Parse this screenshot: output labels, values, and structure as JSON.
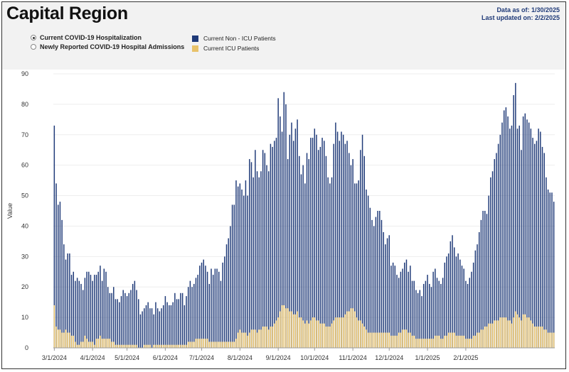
{
  "header": {
    "title": "Capital Region",
    "data_as_of": "Data as of: 1/30/2025",
    "last_updated": "Last updated on: 2/2/2025"
  },
  "controls": {
    "options": [
      {
        "label": "Current COVID-19 Hospitalization",
        "selected": true
      },
      {
        "label": "Newly Reported COVID-19 Hospital Admissions",
        "selected": false
      }
    ]
  },
  "legend": [
    {
      "label": "Current Non - ICU Patients",
      "color": "#1f3a78"
    },
    {
      "label": "Current ICU Patients",
      "color": "#e8c26a"
    }
  ],
  "chart_data": {
    "type": "bar",
    "stacked": false,
    "ylabel": "Value",
    "ylim": [
      0,
      90
    ],
    "yticks": [
      0,
      10,
      20,
      30,
      40,
      50,
      60,
      70,
      80,
      90
    ],
    "xlabels": [
      {
        "label": "3/1/2024",
        "index": 0
      },
      {
        "label": "4/1/2024",
        "index": 20
      },
      {
        "label": "5/1/2024",
        "index": 38
      },
      {
        "label": "6/1/2024",
        "index": 58
      },
      {
        "label": "7/1/2024",
        "index": 77
      },
      {
        "label": "8/1/2024",
        "index": 97
      },
      {
        "label": "9/1/2024",
        "index": 117
      },
      {
        "label": "10/1/2024",
        "index": 136
      },
      {
        "label": "11/1/2024",
        "index": 156
      },
      {
        "label": "12/1/2024",
        "index": 175
      },
      {
        "label": "1/1/2025",
        "index": 195
      },
      {
        "label": "2/1/2025",
        "index": 215
      }
    ],
    "series": [
      {
        "name": "Current Non - ICU Patients",
        "values": [
          73,
          54,
          47,
          48,
          42,
          34,
          29,
          31,
          31,
          24,
          25,
          22,
          23,
          22,
          21,
          19,
          23,
          25,
          25,
          24,
          22,
          24,
          24,
          25,
          27,
          22,
          26,
          25,
          20,
          18,
          18,
          20,
          16,
          16,
          15,
          17,
          19,
          18,
          17,
          18,
          19,
          21,
          22,
          19,
          16,
          11,
          12,
          13,
          14,
          15,
          13,
          13,
          11,
          15,
          13,
          12,
          13,
          14,
          17,
          15,
          14,
          14,
          15,
          18,
          16,
          16,
          18,
          18,
          14,
          17,
          20,
          22,
          20,
          21,
          23,
          24,
          27,
          28,
          29,
          27,
          25,
          21,
          26,
          24,
          26,
          26,
          25,
          22,
          28,
          30,
          34,
          36,
          40,
          47,
          47,
          55,
          53,
          54,
          52,
          50,
          55,
          50,
          62,
          61,
          56,
          65,
          58,
          56,
          58,
          65,
          64,
          60,
          58,
          67,
          66,
          68,
          69,
          82,
          76,
          71,
          84,
          80,
          62,
          70,
          74,
          68,
          72,
          75,
          63,
          57,
          60,
          54,
          64,
          62,
          69,
          69,
          72,
          70,
          65,
          66,
          69,
          68,
          63,
          56,
          54,
          56,
          67,
          74,
          71,
          68,
          71,
          70,
          67,
          68,
          64,
          60,
          62,
          54,
          54,
          55,
          65,
          70,
          63,
          52,
          50,
          46,
          42,
          40,
          43,
          45,
          45,
          42,
          38,
          34,
          36,
          37,
          27,
          28,
          27,
          24,
          23,
          25,
          26,
          28,
          29,
          25,
          27,
          22,
          22,
          19,
          18,
          19,
          17,
          21,
          22,
          24,
          21,
          20,
          25,
          26,
          23,
          22,
          21,
          23,
          28,
          30,
          31,
          35,
          37,
          33,
          30,
          31,
          29,
          27,
          26,
          22,
          21,
          23,
          25,
          28,
          32,
          34,
          38,
          42,
          45,
          45,
          44,
          50,
          56,
          58,
          62,
          64,
          67,
          70,
          74,
          78,
          79,
          76,
          72,
          73,
          83,
          87,
          72,
          73,
          65,
          76,
          77,
          75,
          74,
          72,
          69,
          67,
          68,
          72,
          71,
          66,
          64,
          56,
          52,
          51,
          51,
          48
        ]
      },
      {
        "name": "Current ICU Patients",
        "values": [
          14,
          7,
          6,
          6,
          5,
          5,
          6,
          5,
          5,
          4,
          4,
          2,
          1,
          1,
          2,
          2,
          4,
          3,
          2,
          2,
          2,
          1,
          3,
          3,
          4,
          3,
          3,
          3,
          3,
          3,
          2,
          2,
          1,
          1,
          1,
          1,
          1,
          1,
          1,
          1,
          1,
          1,
          1,
          1,
          0,
          0,
          0,
          1,
          1,
          1,
          1,
          0,
          1,
          1,
          1,
          1,
          1,
          1,
          1,
          1,
          1,
          1,
          1,
          1,
          1,
          1,
          1,
          1,
          1,
          1,
          2,
          2,
          2,
          2,
          3,
          3,
          3,
          3,
          3,
          3,
          3,
          2,
          2,
          2,
          2,
          2,
          2,
          2,
          2,
          2,
          2,
          2,
          2,
          2,
          2,
          3,
          5,
          6,
          5,
          5,
          5,
          4,
          5,
          6,
          6,
          6,
          5,
          6,
          6,
          7,
          7,
          7,
          6,
          7,
          7,
          8,
          9,
          10,
          12,
          14,
          14,
          13,
          13,
          12,
          12,
          11,
          11,
          12,
          10,
          10,
          9,
          8,
          9,
          8,
          9,
          10,
          10,
          9,
          9,
          8,
          8,
          8,
          7,
          7,
          7,
          8,
          9,
          10,
          10,
          10,
          10,
          10,
          11,
          12,
          12,
          13,
          13,
          12,
          10,
          9,
          9,
          8,
          7,
          6,
          5,
          5,
          5,
          5,
          5,
          5,
          5,
          5,
          5,
          5,
          5,
          5,
          4,
          4,
          4,
          4,
          5,
          5,
          6,
          6,
          6,
          5,
          5,
          4,
          4,
          3,
          3,
          3,
          3,
          3,
          3,
          3,
          3,
          3,
          3,
          4,
          4,
          4,
          3,
          3,
          4,
          4,
          5,
          5,
          5,
          5,
          4,
          4,
          4,
          4,
          4,
          3,
          3,
          3,
          3,
          4,
          4,
          5,
          5,
          6,
          6,
          7,
          7,
          8,
          8,
          8,
          9,
          9,
          9,
          10,
          10,
          10,
          10,
          9,
          9,
          8,
          10,
          12,
          11,
          10,
          9,
          11,
          11,
          10,
          10,
          9,
          8,
          7,
          7,
          7,
          7,
          7,
          6,
          6,
          5,
          5,
          5,
          5
        ]
      }
    ]
  }
}
